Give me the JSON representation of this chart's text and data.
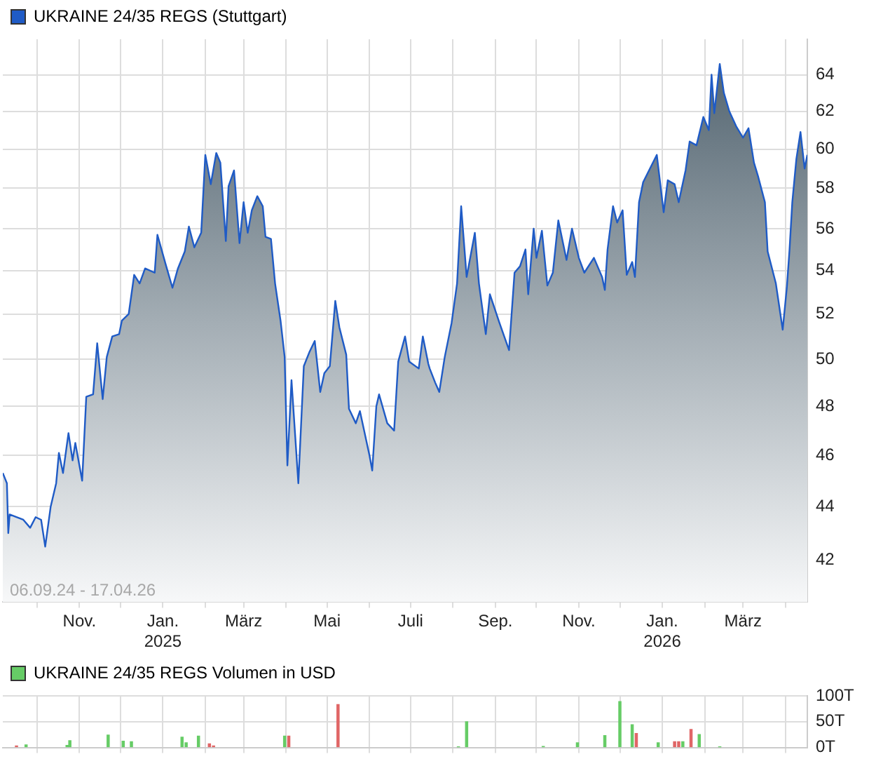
{
  "chart_data": [
    {
      "type": "area",
      "legend": "top left",
      "log": true,
      "grid": true,
      "xlim": [
        "2024-09-06",
        "2026-04-17"
      ],
      "xticks": [
        {
          "value": "2024-10-01",
          "label": null
        },
        {
          "value": "2024-11-01",
          "label": "Nov."
        },
        {
          "value": "2024-12-01",
          "label": null
        },
        {
          "value": "2025-01-01",
          "label": "Jan.\n2025"
        },
        {
          "value": "2025-02-01",
          "label": null
        },
        {
          "value": "2025-03-01",
          "label": "März"
        },
        {
          "value": "2025-04-01",
          "label": null
        },
        {
          "value": "2025-05-01",
          "label": "Mai"
        },
        {
          "value": "2025-06-01",
          "label": null
        },
        {
          "value": "2025-07-01",
          "label": "Juli"
        },
        {
          "value": "2025-08-01",
          "label": null
        },
        {
          "value": "2025-09-01",
          "label": "Sep."
        },
        {
          "value": "2025-10-01",
          "label": null
        },
        {
          "value": "2025-11-01",
          "label": "Nov."
        },
        {
          "value": "2025-12-01",
          "label": null
        },
        {
          "value": "2026-01-01",
          "label": "Jan.\n2026"
        },
        {
          "value": "2026-02-01",
          "label": null
        },
        {
          "value": "2026-03-01",
          "label": "März"
        },
        {
          "value": "2026-04-01",
          "label": null
        }
      ],
      "ylim": [
        40.5,
        66
      ],
      "yticks": [
        42,
        44,
        46,
        48,
        50,
        52,
        54,
        56,
        58,
        60,
        62,
        64
      ],
      "annotations": [
        "06.09.24 - 17.04.26"
      ],
      "series": [
        {
          "name": "UKRAINE 24/35 REGS (Stuttgart)",
          "color": "#1f5bc6",
          "x": [
            "2024-09-06",
            "2024-09-09",
            "2024-09-10",
            "2024-09-11",
            "2024-09-21",
            "2024-09-26",
            "2024-09-30",
            "2024-10-04",
            "2024-10-07",
            "2024-10-11",
            "2024-10-15",
            "2024-10-17",
            "2024-10-20",
            "2024-10-24",
            "2024-10-27",
            "2024-10-29",
            "2024-11-03",
            "2024-11-06",
            "2024-11-11",
            "2024-11-14",
            "2024-11-18",
            "2024-11-21",
            "2024-11-25",
            "2024-11-30",
            "2024-12-02",
            "2024-12-07",
            "2024-12-11",
            "2024-12-15",
            "2024-12-19",
            "2024-12-26",
            "2024-12-28",
            "2025-01-03",
            "2025-01-08",
            "2025-01-12",
            "2025-01-17",
            "2025-01-20",
            "2025-01-24",
            "2025-01-29",
            "2025-02-01",
            "2025-02-05",
            "2025-02-09",
            "2025-02-12",
            "2025-02-16",
            "2025-02-18",
            "2025-02-22",
            "2025-02-26",
            "2025-03-01",
            "2025-03-04",
            "2025-03-07",
            "2025-03-11",
            "2025-03-15",
            "2025-03-17",
            "2025-03-21",
            "2025-03-24",
            "2025-03-28",
            "2025-03-31",
            "2025-04-02",
            "2025-04-05",
            "2025-04-10",
            "2025-04-14",
            "2025-04-18",
            "2025-04-22",
            "2025-04-26",
            "2025-04-29",
            "2025-05-03",
            "2025-05-07",
            "2025-05-10",
            "2025-05-15",
            "2025-05-17",
            "2025-05-22",
            "2025-05-25",
            "2025-06-01",
            "2025-06-03",
            "2025-06-06",
            "2025-06-08",
            "2025-06-14",
            "2025-06-19",
            "2025-06-22",
            "2025-06-27",
            "2025-06-30",
            "2025-07-07",
            "2025-07-10",
            "2025-07-14",
            "2025-07-15",
            "2025-07-19",
            "2025-07-22",
            "2025-07-26",
            "2025-07-31",
            "2025-08-04",
            "2025-08-07",
            "2025-08-11",
            "2025-08-17",
            "2025-08-20",
            "2025-08-25",
            "2025-08-28",
            "2025-09-04",
            "2025-09-11",
            "2025-09-15",
            "2025-09-19",
            "2025-09-23",
            "2025-09-25",
            "2025-09-29",
            "2025-10-01",
            "2025-10-05",
            "2025-10-09",
            "2025-10-13",
            "2025-10-17",
            "2025-10-23",
            "2025-10-27",
            "2025-11-01",
            "2025-11-05",
            "2025-11-12",
            "2025-11-18",
            "2025-11-20",
            "2025-11-22",
            "2025-11-26",
            "2025-11-29",
            "2025-12-03",
            "2025-12-06",
            "2025-12-10",
            "2025-12-12",
            "2025-12-15",
            "2025-12-18",
            "2025-12-23",
            "2025-12-28",
            "2026-01-02",
            "2026-01-05",
            "2026-01-10",
            "2026-01-13",
            "2026-01-18",
            "2026-01-21",
            "2026-01-26",
            "2026-01-31",
            "2026-02-04",
            "2026-02-06",
            "2026-02-08",
            "2026-02-12",
            "2026-02-15",
            "2026-02-19",
            "2026-02-24",
            "2026-03-01",
            "2026-03-05",
            "2026-03-09",
            "2026-03-12",
            "2026-03-17",
            "2026-03-19",
            "2026-03-25",
            "2026-03-30",
            "2026-04-02",
            "2026-04-04",
            "2026-04-06",
            "2026-04-09",
            "2026-04-12",
            "2026-04-15",
            "2026-04-17"
          ],
          "values": [
            45.3,
            44.9,
            43.0,
            43.7,
            43.5,
            43.2,
            43.6,
            43.5,
            42.5,
            44.0,
            44.9,
            46.1,
            45.3,
            46.9,
            45.8,
            46.5,
            45.0,
            48.4,
            48.5,
            50.7,
            48.3,
            50.1,
            51.0,
            51.1,
            51.7,
            52.0,
            53.8,
            53.4,
            54.1,
            53.9,
            55.7,
            54.3,
            53.2,
            54.1,
            54.9,
            56.1,
            55.1,
            55.8,
            59.7,
            58.2,
            59.8,
            59.3,
            55.4,
            58.1,
            58.9,
            55.3,
            57.3,
            55.8,
            56.9,
            57.6,
            57.1,
            55.6,
            55.5,
            53.4,
            51.7,
            50.1,
            45.6,
            49.1,
            44.9,
            49.7,
            50.3,
            50.8,
            48.6,
            49.4,
            49.7,
            52.6,
            51.4,
            50.2,
            47.9,
            47.3,
            47.8,
            46.0,
            45.4,
            48.0,
            48.5,
            47.3,
            47.0,
            49.9,
            51.0,
            49.9,
            49.6,
            51.0,
            49.8,
            49.6,
            49.0,
            48.6,
            50.1,
            51.6,
            53.4,
            57.1,
            53.7,
            55.8,
            53.4,
            51.1,
            52.9,
            51.6,
            50.4,
            53.9,
            54.2,
            55.0,
            52.9,
            56.0,
            54.6,
            55.9,
            53.3,
            53.9,
            56.4,
            54.5,
            56.0,
            54.6,
            53.9,
            54.6,
            53.7,
            53.1,
            55.0,
            57.1,
            56.3,
            56.9,
            53.8,
            54.4,
            53.7,
            57.3,
            58.3,
            59.0,
            59.7,
            56.8,
            58.4,
            58.2,
            57.3,
            58.9,
            60.4,
            60.2,
            61.7,
            61.0,
            64.0,
            61.9,
            64.6,
            63.0,
            62.0,
            61.2,
            60.6,
            61.1,
            59.3,
            58.6,
            57.3,
            54.9,
            53.4,
            51.3,
            53.2,
            55.0,
            57.3,
            59.5,
            60.9,
            59.0,
            59.7
          ]
        }
      ]
    },
    {
      "type": "bar",
      "legend": "top left",
      "grid": true,
      "tick_labels": "y",
      "xlim": [
        "2024-09-06",
        "2026-04-17"
      ],
      "xticks": [
        {
          "value": "2024-10-01",
          "label": null
        },
        {
          "value": "2024-11-01",
          "label": null
        },
        {
          "value": "2024-12-01",
          "label": null
        },
        {
          "value": "2025-01-01",
          "label": null
        },
        {
          "value": "2025-02-01",
          "label": null
        },
        {
          "value": "2025-03-01",
          "label": null
        },
        {
          "value": "2025-04-01",
          "label": null
        },
        {
          "value": "2025-05-01",
          "label": null
        },
        {
          "value": "2025-06-01",
          "label": null
        },
        {
          "value": "2025-07-01",
          "label": null
        },
        {
          "value": "2025-08-01",
          "label": null
        },
        {
          "value": "2025-09-01",
          "label": null
        },
        {
          "value": "2025-10-01",
          "label": null
        },
        {
          "value": "2025-11-01",
          "label": null
        },
        {
          "value": "2025-12-01",
          "label": null
        },
        {
          "value": "2026-01-01",
          "label": null
        },
        {
          "value": "2026-02-01",
          "label": null
        },
        {
          "value": "2026-03-01",
          "label": null
        },
        {
          "value": "2026-04-01",
          "label": null
        }
      ],
      "ylim": [
        0,
        100
      ],
      "yticks": [
        {
          "value": 0,
          "label": "0T"
        },
        {
          "value": 50,
          "label": "50T"
        },
        {
          "value": 100,
          "label": "100T"
        }
      ],
      "series": [
        {
          "name": "UKRAINE 24/35 REGS Volumen in USD",
          "color": "#66cc66",
          "x": [
            "2024-09-16",
            "2024-09-23",
            "2024-10-23",
            "2024-10-25",
            "2024-11-22",
            "2024-12-03",
            "2024-12-09",
            "2025-01-15",
            "2025-01-18",
            "2025-01-27",
            "2025-02-04",
            "2025-02-07",
            "2025-03-31",
            "2025-04-03",
            "2025-05-09",
            "2025-08-05",
            "2025-08-11",
            "2025-10-06",
            "2025-10-31",
            "2025-11-20",
            "2025-12-01",
            "2025-12-10",
            "2025-12-13",
            "2025-12-29",
            "2026-01-10",
            "2026-01-13",
            "2026-01-16",
            "2026-01-22",
            "2026-01-28",
            "2026-02-12"
          ],
          "values": [
            3,
            5,
            4,
            13,
            24,
            12,
            11,
            20,
            9,
            22,
            7,
            3,
            22,
            22,
            83,
            1,
            50,
            2,
            9,
            23,
            89,
            44,
            27,
            9,
            11,
            11,
            11,
            35,
            25,
            1
          ],
          "colors": [
            "#e06666",
            "#66cc66",
            "#66cc66",
            "#66cc66",
            "#66cc66",
            "#66cc66",
            "#66cc66",
            "#66cc66",
            "#66cc66",
            "#66cc66",
            "#e06666",
            "#e06666",
            "#66cc66",
            "#e06666",
            "#e06666",
            "#66cc66",
            "#66cc66",
            "#66cc66",
            "#66cc66",
            "#66cc66",
            "#66cc66",
            "#66cc66",
            "#e06666",
            "#66cc66",
            "#e06666",
            "#e06666",
            "#66cc66",
            "#e06666",
            "#66cc66",
            "#66cc66"
          ]
        }
      ]
    }
  ]
}
